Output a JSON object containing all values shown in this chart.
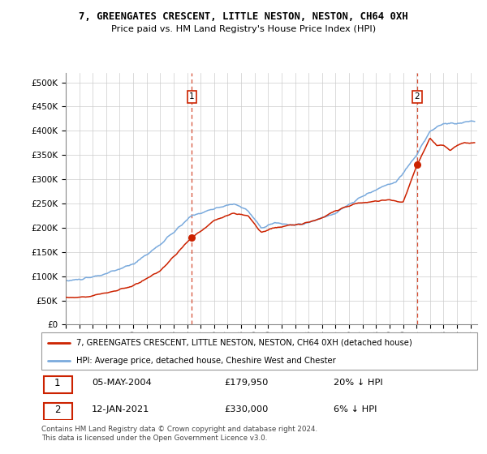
{
  "title": "7, GREENGATES CRESCENT, LITTLE NESTON, NESTON, CH64 0XH",
  "subtitle": "Price paid vs. HM Land Registry's House Price Index (HPI)",
  "legend_line1": "7, GREENGATES CRESCENT, LITTLE NESTON, NESTON, CH64 0XH (detached house)",
  "legend_line2": "HPI: Average price, detached house, Cheshire West and Chester",
  "annotation1_label": "1",
  "annotation1_date": "05-MAY-2004",
  "annotation1_price": "£179,950",
  "annotation1_hpi": "20% ↓ HPI",
  "annotation2_label": "2",
  "annotation2_date": "12-JAN-2021",
  "annotation2_price": "£330,000",
  "annotation2_hpi": "6% ↓ HPI",
  "footer": "Contains HM Land Registry data © Crown copyright and database right 2024.\nThis data is licensed under the Open Government Licence v3.0.",
  "ylim": [
    0,
    520000
  ],
  "yticks": [
    0,
    50000,
    100000,
    150000,
    200000,
    250000,
    300000,
    350000,
    400000,
    450000,
    500000
  ],
  "hpi_color": "#7aaadd",
  "price_color": "#cc2200",
  "vline_color": "#cc2200",
  "grid_color": "#cccccc",
  "sale1_x": 2004.35,
  "sale1_y": 179950,
  "sale2_x": 2021.04,
  "sale2_y": 330000,
  "xmin": 1995,
  "xmax": 2025.5
}
